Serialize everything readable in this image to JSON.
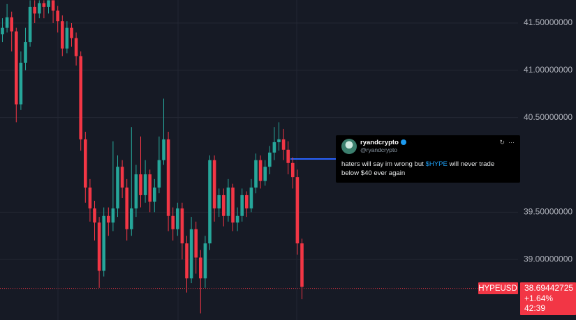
{
  "chart_data": {
    "type": "candlestick",
    "symbol": "HYPEUSD",
    "last_price": 38.69442725,
    "change_label": "+1.64%",
    "countdown": "42:39",
    "up_color": "#26a69a",
    "down_color": "#f23645",
    "ylim": [
      38.36,
      41.743
    ],
    "yticks": [
      {
        "value": 39.0,
        "label": "39.00000000"
      },
      {
        "value": 39.5,
        "label": "39.50000000"
      },
      {
        "value": 40.5,
        "label": "40.50000000"
      },
      {
        "value": 41.0,
        "label": "41.00000000"
      },
      {
        "value": 41.5,
        "label": "41.50000000"
      }
    ],
    "grid": true,
    "open": [
      41.38,
      41.45,
      41.56,
      41.41,
      40.64,
      41.08,
      41.3,
      41.67,
      41.6,
      41.71,
      41.67,
      41.74,
      41.63,
      41.52,
      41.23,
      41.45,
      41.34,
      41.15,
      40.27,
      39.76,
      39.54,
      39.39,
      38.88,
      39.46,
      39.39,
      39.54,
      39.98,
      39.76,
      39.32,
      39.54,
      39.9,
      39.68,
      39.9,
      39.61,
      39.76,
      40.05,
      40.27,
      39.46,
      39.32,
      39.54,
      39.17,
      38.8,
      39.32,
      39.02,
      38.8,
      39.17,
      40.05,
      39.54,
      39.68,
      39.46,
      39.76,
      39.39,
      39.46,
      39.68,
      39.54,
      39.76,
      40.05,
      39.83,
      39.98,
      40.13,
      40.24,
      40.27,
      40.16,
      40.02,
      39.87,
      39.17
    ],
    "high": [
      41.55,
      41.7,
      41.62,
      41.45,
      41.2,
      41.45,
      41.74,
      41.74,
      41.74,
      41.74,
      41.74,
      41.74,
      41.68,
      41.58,
      41.52,
      41.5,
      41.4,
      41.2,
      40.35,
      39.85,
      39.62,
      39.45,
      39.55,
      39.55,
      40.25,
      40.1,
      40.05,
      39.85,
      40.4,
      40.0,
      40.3,
      40.05,
      39.95,
      39.85,
      40.3,
      40.7,
      40.35,
      39.55,
      39.6,
      39.6,
      39.25,
      39.45,
      39.4,
      39.1,
      39.25,
      40.1,
      40.1,
      39.75,
      39.75,
      39.85,
      39.8,
      39.55,
      39.75,
      39.72,
      39.85,
      40.12,
      40.1,
      40.05,
      40.2,
      40.4,
      40.45,
      40.38,
      40.25,
      40.08,
      39.95,
      39.22
    ],
    "low": [
      41.3,
      41.4,
      41.2,
      40.45,
      40.58,
      41.0,
      41.25,
      41.5,
      41.55,
      41.55,
      41.6,
      41.5,
      41.4,
      41.15,
      41.18,
      41.25,
      41.05,
      40.15,
      39.6,
      39.4,
      39.2,
      38.7,
      38.82,
      39.25,
      39.3,
      39.45,
      39.65,
      39.2,
      39.25,
      39.45,
      39.55,
      39.6,
      39.5,
      39.5,
      39.7,
      40.0,
      39.3,
      39.2,
      39.25,
      39.0,
      38.65,
      38.75,
      38.85,
      38.43,
      38.7,
      39.1,
      39.4,
      39.45,
      39.35,
      39.4,
      39.3,
      39.3,
      39.4,
      39.45,
      39.5,
      39.7,
      39.75,
      39.78,
      39.9,
      40.05,
      40.15,
      40.05,
      39.9,
      39.75,
      39.05,
      38.58
    ],
    "close": [
      41.45,
      41.56,
      41.41,
      40.64,
      41.08,
      41.3,
      41.67,
      41.6,
      41.71,
      41.67,
      41.74,
      41.63,
      41.52,
      41.23,
      41.45,
      41.34,
      41.15,
      40.27,
      39.76,
      39.54,
      39.39,
      38.88,
      39.46,
      39.39,
      39.54,
      39.98,
      39.76,
      39.32,
      39.54,
      39.9,
      39.68,
      39.9,
      39.61,
      39.76,
      40.05,
      40.27,
      39.46,
      39.32,
      39.54,
      39.17,
      38.8,
      39.32,
      39.02,
      38.8,
      39.17,
      40.05,
      39.54,
      39.68,
      39.46,
      39.76,
      39.39,
      39.46,
      39.68,
      39.54,
      39.76,
      40.05,
      39.83,
      39.98,
      40.13,
      40.24,
      40.27,
      40.16,
      40.02,
      39.87,
      39.17,
      38.71
    ]
  },
  "tweet": {
    "author": "ryandcrypto",
    "handle": "@ryandcrypto",
    "text_before": "haters will say im wrong but ",
    "cashtag": "$HYPE",
    "text_after": " will never trade below $40 ever again"
  }
}
